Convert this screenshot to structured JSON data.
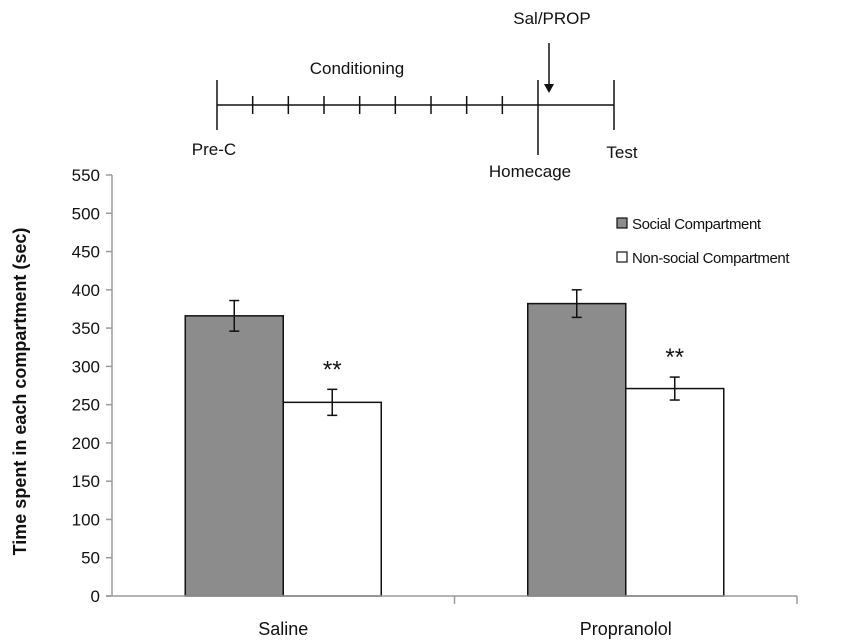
{
  "timeline": {
    "conditioning_label": "Conditioning",
    "sal_prop_label": "Sal/PROP",
    "prec_label": "Pre-C",
    "homecage_label": "Homecage",
    "test_label": "Test"
  },
  "chart_data": {
    "type": "bar",
    "categories": [
      "Saline",
      "Propranolol"
    ],
    "series": [
      {
        "name": "Social Compartment",
        "values": [
          366,
          382
        ],
        "errors": [
          20,
          18
        ],
        "color": "#8c8c8c"
      },
      {
        "name": "Non-social Compartment",
        "values": [
          253,
          271
        ],
        "errors": [
          17,
          15
        ],
        "color": "#ffffff"
      }
    ],
    "significance": [
      "**",
      "**"
    ],
    "ylabel": "Time spent in each compartment (sec)",
    "ylim": [
      0,
      550
    ],
    "yticks": [
      0,
      50,
      100,
      150,
      200,
      250,
      300,
      350,
      400,
      450,
      500,
      550
    ],
    "legend_position": "top-right",
    "grid": false
  }
}
